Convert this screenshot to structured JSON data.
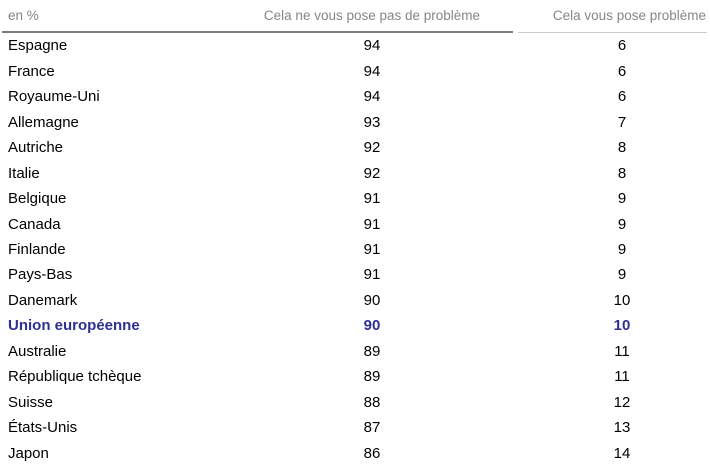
{
  "chart_data": {
    "type": "table",
    "unit": "en %",
    "col_no_problem": "Cela ne vous pose pas de problème",
    "col_problem": "Cela vous pose problème",
    "columns": [
      "en %",
      "Cela ne vous pose pas de problème",
      "Cela vous pose problème"
    ],
    "rows": [
      {
        "label": "Espagne",
        "no_problem": 94,
        "problem": 6,
        "highlight": false
      },
      {
        "label": "France",
        "no_problem": 94,
        "problem": 6,
        "highlight": false
      },
      {
        "label": "Royaume-Uni",
        "no_problem": 94,
        "problem": 6,
        "highlight": false
      },
      {
        "label": "Allemagne",
        "no_problem": 93,
        "problem": 7,
        "highlight": false
      },
      {
        "label": "Autriche",
        "no_problem": 92,
        "problem": 8,
        "highlight": false
      },
      {
        "label": "Italie",
        "no_problem": 92,
        "problem": 8,
        "highlight": false
      },
      {
        "label": "Belgique",
        "no_problem": 91,
        "problem": 9,
        "highlight": false
      },
      {
        "label": "Canada",
        "no_problem": 91,
        "problem": 9,
        "highlight": false
      },
      {
        "label": "Finlande",
        "no_problem": 91,
        "problem": 9,
        "highlight": false
      },
      {
        "label": "Pays-Bas",
        "no_problem": 91,
        "problem": 9,
        "highlight": false
      },
      {
        "label": "Danemark",
        "no_problem": 90,
        "problem": 10,
        "highlight": false
      },
      {
        "label": "Union européenne",
        "no_problem": 90,
        "problem": 10,
        "highlight": true
      },
      {
        "label": "Australie",
        "no_problem": 89,
        "problem": 11,
        "highlight": false
      },
      {
        "label": "République tchèque",
        "no_problem": 89,
        "problem": 11,
        "highlight": false
      },
      {
        "label": "Suisse",
        "no_problem": 88,
        "problem": 12,
        "highlight": false
      },
      {
        "label": "États-Unis",
        "no_problem": 87,
        "problem": 13,
        "highlight": false
      },
      {
        "label": "Japon",
        "no_problem": 86,
        "problem": 14,
        "highlight": false
      }
    ]
  },
  "colors": {
    "highlight": "#2e3192",
    "header_text": "#8a8580",
    "rule_dark": "#7b7b7b",
    "rule_light": "#c9c9c9",
    "row_text": "#000000"
  }
}
